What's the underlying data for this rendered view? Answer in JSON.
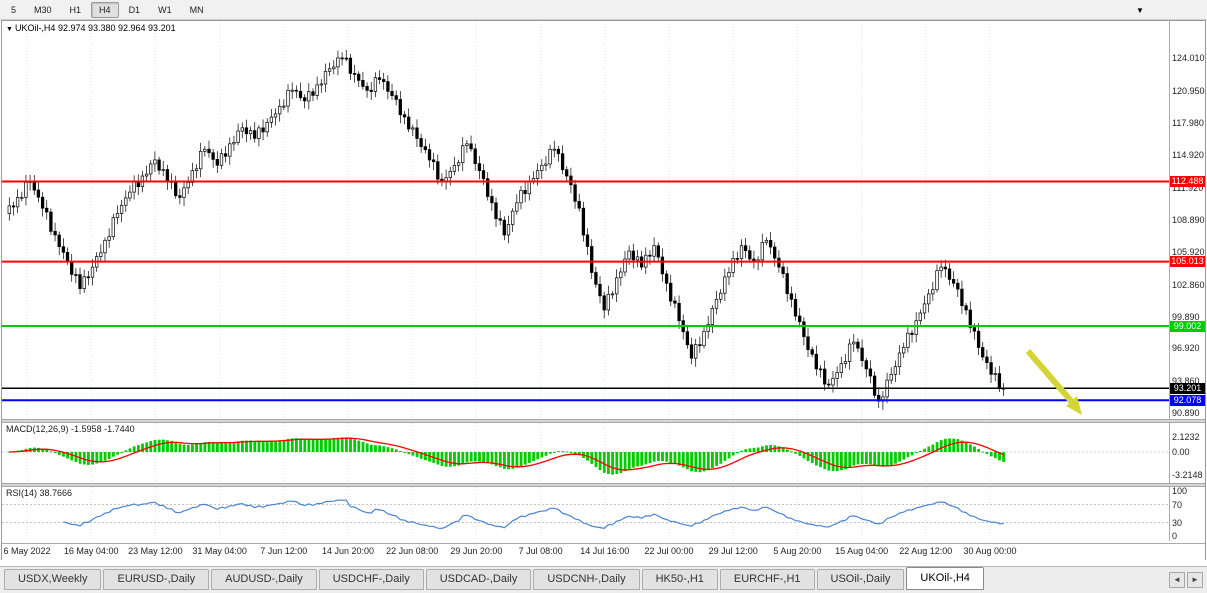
{
  "toolbar": {
    "timeframes": [
      "5",
      "M30",
      "H1",
      "H4",
      "D1",
      "W1",
      "MN"
    ],
    "active_timeframe": "H4",
    "menu_icon": "▼"
  },
  "chart": {
    "title": {
      "collapse_icon": "▼",
      "symbol_tf": "UKOil-,H4",
      "ohlc": "92.974 93.380 92.964 93.201"
    }
  },
  "chart_data": {
    "type": "candlestick",
    "symbol": "UKOil-",
    "timeframe": "H4",
    "title": "UKOil-,H4 92.974 93.380 92.964 93.201",
    "ohlc_display": {
      "open": "92.974",
      "high": "93.380",
      "low": "92.964",
      "close": "93.201"
    },
    "ylim": [
      90.15,
      127.46
    ],
    "grid": "vertical-dotted",
    "closes": [
      109.5,
      111.0,
      112.5,
      110.0,
      107.5,
      105.0,
      102.5,
      104.5,
      107.0,
      109.5,
      111.5,
      113.0,
      114.5,
      112.5,
      111.0,
      113.5,
      115.5,
      114.0,
      116.0,
      117.5,
      116.5,
      118.0,
      119.5,
      121.0,
      120.0,
      121.5,
      123.0,
      124.0,
      122.5,
      121.0,
      122.0,
      120.5,
      118.5,
      116.5,
      114.5,
      112.5,
      114.0,
      116.0,
      113.5,
      110.5,
      107.5,
      110.5,
      112.5,
      114.0,
      115.5,
      113.0,
      110.0,
      104.0,
      100.5,
      103.5,
      106.0,
      104.5,
      106.5,
      103.0,
      99.5,
      96.0,
      98.5,
      101.5,
      104.0,
      106.5,
      105.0,
      107.0,
      104.5,
      101.5,
      98.0,
      95.0,
      93.5,
      95.5,
      97.5,
      95.0,
      92.0,
      94.5,
      97.0,
      99.5,
      102.0,
      104.5,
      103.0,
      100.5,
      97.0,
      94.5,
      93.2
    ],
    "price_axis_labels": [
      "124.010",
      "120.950",
      "117.980",
      "114.920",
      "111.920",
      "108.890",
      "105.920",
      "102.860",
      "99.890",
      "96.920",
      "93.860",
      "90.890"
    ],
    "hlines": [
      {
        "price": 112.488,
        "label": "112.488",
        "color": "#ff0000",
        "width": 2
      },
      {
        "price": 105.013,
        "label": "105.013",
        "color": "#ff0000",
        "width": 2
      },
      {
        "price": 99.002,
        "label": "99.002",
        "color": "#00cc00",
        "width": 2
      },
      {
        "price": 93.201,
        "label": "93.201",
        "color": "#000000",
        "width": 1.5,
        "role": "current-price"
      },
      {
        "price": 92.078,
        "label": "92.078",
        "color": "#0000ff",
        "width": 2
      }
    ],
    "annotation_arrow": {
      "type": "arrow-down-right",
      "color": "#d4d436"
    },
    "time_labels": [
      "6 May 2022",
      "16 May 04:00",
      "23 May 12:00",
      "31 May 04:00",
      "7 Jun 12:00",
      "14 Jun 20:00",
      "22 Jun 08:00",
      "29 Jun 20:00",
      "7 Jul 08:00",
      "14 Jul 16:00",
      "22 Jul 00:00",
      "29 Jul 12:00",
      "5 Aug 20:00",
      "15 Aug 04:00",
      "22 Aug 12:00",
      "30 Aug 00:00"
    ],
    "macd": {
      "label": "MACD(12,26,9)",
      "main_value": "-1.5958",
      "signal_value": "-1.7440",
      "params": [
        12,
        26,
        9
      ],
      "axis_labels": [
        "2.1232",
        "0.00",
        "-3.2148"
      ],
      "histogram_color": "#00cc00",
      "signal_color": "#ff0000"
    },
    "rsi": {
      "label": "RSI(14)",
      "value": "38.7666",
      "period": 14,
      "axis_labels": [
        "100",
        "70",
        "30",
        "0"
      ],
      "levels": [
        70,
        30
      ],
      "line_color": "#4a84d2"
    },
    "candle_up_color": "#ffffff",
    "candle_down_color": "#000000",
    "candle_outline_color": "#000000"
  },
  "tabs": {
    "items": [
      "USDX,Weekly",
      "EURUSD-,Daily",
      "AUDUSD-,Daily",
      "USDCHF-,Daily",
      "USDCAD-,Daily",
      "USDCNH-,Daily",
      "HK50-,H1",
      "EURCHF-,H1",
      "USOil-,Daily",
      "UKOil-,H4"
    ],
    "active": "UKOil-,H4",
    "scroll_left_icon": "◄",
    "scroll_right_icon": "►"
  }
}
